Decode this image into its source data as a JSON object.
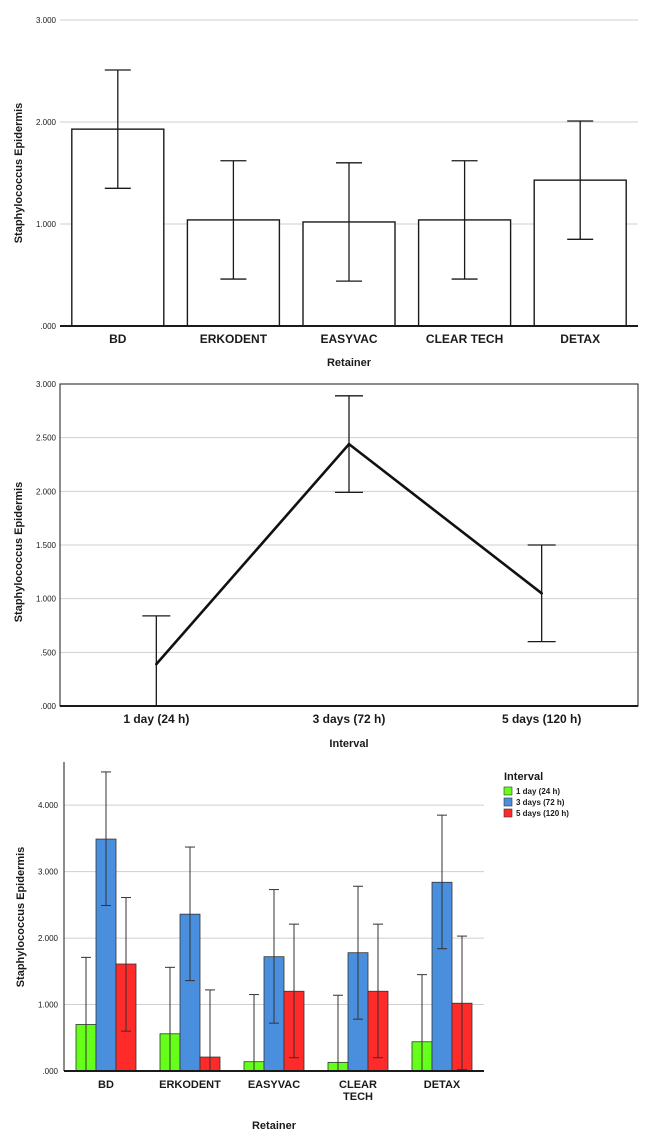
{
  "colors": {
    "bar_fill": "#ffffff",
    "bar_stroke": "#1a1a1a",
    "line": "#111111",
    "series": [
      "#66ff1a",
      "#4a8fdd",
      "#ff2a2a"
    ]
  },
  "chart_data": [
    {
      "type": "bar",
      "title": "",
      "xlabel": "Retainer",
      "ylabel": "Staphylococcus Epidermis",
      "ylim": [
        0,
        3
      ],
      "yticks": [
        ".000",
        "1.000",
        "2.000",
        "3.000"
      ],
      "categories": [
        "BD",
        "ERKODENT",
        "EASYVAC",
        "CLEAR TECH",
        "DETAX"
      ],
      "values": [
        1.93,
        1.04,
        1.02,
        1.04,
        1.43
      ],
      "error_low": [
        1.35,
        0.46,
        0.44,
        0.46,
        0.85
      ],
      "error_high": [
        2.51,
        1.62,
        1.6,
        1.62,
        2.01
      ]
    },
    {
      "type": "line",
      "title": "",
      "xlabel": "Interval",
      "ylabel": "Staphylococcus Epidermis",
      "ylim": [
        0,
        3
      ],
      "yticks": [
        ".000",
        ".500",
        "1.000",
        "1.500",
        "2.000",
        "2.500",
        "3.000"
      ],
      "categories": [
        "1 day (24 h)",
        "3 days (72 h)",
        "5 days (120 h)"
      ],
      "values": [
        0.39,
        2.44,
        1.05
      ],
      "error_low": [
        0.0,
        1.99,
        0.6
      ],
      "error_high": [
        0.84,
        2.89,
        1.5
      ]
    },
    {
      "type": "bar",
      "title": "",
      "xlabel": "Retainer",
      "ylabel": "Staphylococcus Epidermis",
      "ylim": [
        0,
        4.5
      ],
      "yticks": [
        ".000",
        "1.000",
        "2.000",
        "3.000",
        "4.000"
      ],
      "categories": [
        "BD",
        "ERKODENT",
        "EASYVAC",
        "CLEAR\nTECH",
        "DETAX"
      ],
      "legend_title": "Interval",
      "legend_position": "top-right",
      "series": [
        {
          "name": "1 day (24 h)",
          "values": [
            0.7,
            0.56,
            0.14,
            0.13,
            0.44
          ],
          "error_low": [
            0.0,
            0.0,
            0.0,
            0.0,
            0.0
          ],
          "error_high": [
            1.71,
            1.56,
            1.15,
            1.14,
            1.45
          ]
        },
        {
          "name": "3 days (72 h)",
          "values": [
            3.49,
            2.36,
            1.72,
            1.78,
            2.84
          ],
          "error_low": [
            2.49,
            1.36,
            0.72,
            0.78,
            1.84
          ],
          "error_high": [
            4.5,
            3.37,
            2.73,
            2.78,
            3.85
          ]
        },
        {
          "name": "5 days (120 h)",
          "values": [
            1.61,
            0.21,
            1.2,
            1.2,
            1.02
          ],
          "error_low": [
            0.6,
            0.0,
            0.2,
            0.2,
            0.02
          ],
          "error_high": [
            2.61,
            1.22,
            2.21,
            2.21,
            2.03
          ]
        }
      ]
    }
  ]
}
